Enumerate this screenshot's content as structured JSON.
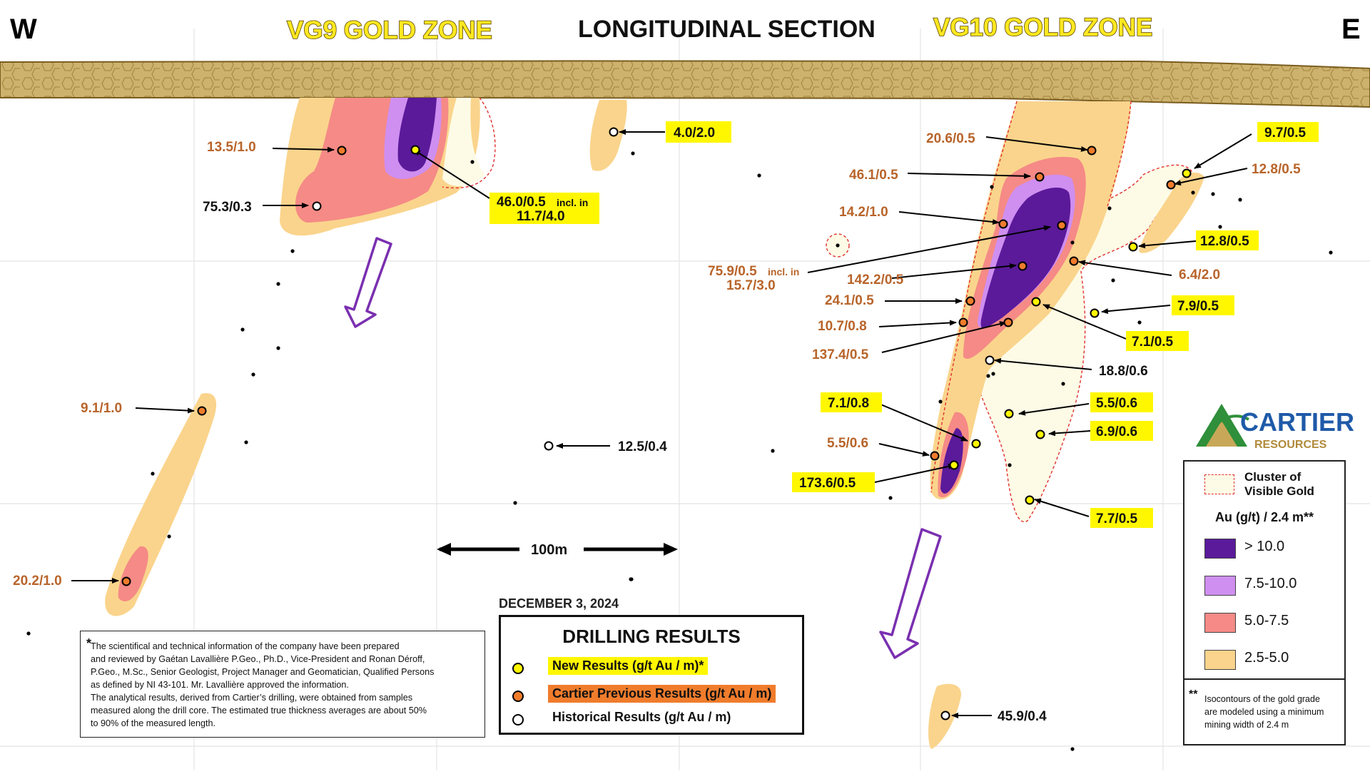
{
  "header": {
    "west": "W",
    "east": "E",
    "vg9_title": "VG9 GOLD ZONE",
    "section_title": "LONGITUDINAL SECTION",
    "vg10_title": "VG10 GOLD ZONE"
  },
  "colors": {
    "grade_gt10": "#5a1a9a",
    "grade_75_10": "#cf8ff0",
    "grade_5_75": "#f58a86",
    "grade_25_5": "#fad48c",
    "visible_gold": "#fdfbe6",
    "new_result": "#fff700",
    "previous_result": "#f07c2c",
    "historical_result": "#ffffff",
    "overburden": "#cdb26e",
    "arrow": "#7a2fb0"
  },
  "labels": {
    "l_13_5": "13.5/1.0",
    "l_75_3": "75.3/0.3",
    "l_46_0": "46.0/0.5",
    "l_46_0_incl": "incl. in",
    "l_11_7": "11.7/4.0",
    "l_4_0": "4.0/2.0",
    "l_9_1": "9.1/1.0",
    "l_20_2": "20.2/1.0",
    "l_12_5": "12.5/0.4",
    "l_20_6": "20.6/0.5",
    "l_46_1": "46.1/0.5",
    "l_14_2": "14.2/1.0",
    "l_75_9": "75.9/0.5",
    "l_75_9_incl": "incl. in",
    "l_15_7": "15.7/3.0",
    "l_142_2": "142.2/0.5",
    "l_24_1": "24.1/0.5",
    "l_10_7": "10.7/0.8",
    "l_137_4": "137.4/0.5",
    "l_7_1_08": "7.1/0.8",
    "l_5_5_06a": "5.5/0.6",
    "l_173_6": "173.6/0.5",
    "l_9_7": "9.7/0.5",
    "l_12_8a": "12.8/0.5",
    "l_12_8b": "12.8/0.5",
    "l_6_4": "6.4/2.0",
    "l_7_9": "7.9/0.5",
    "l_7_1_05": "7.1/0.5",
    "l_18_8": "18.8/0.6",
    "l_5_5_06b": "5.5/0.6",
    "l_6_9": "6.9/0.6",
    "l_7_7": "7.7/0.5",
    "l_45_9": "45.9/0.4"
  },
  "scale_bar": {
    "label": "100m"
  },
  "note": {
    "marker": "*",
    "lines": [
      "The scientifical and technical information of the company have been prepared",
      "and reviewed by Gaétan Lavallière P.Geo., Ph.D., Vice-President and Ronan Déroff,",
      "P.Geo., M.Sc., Senior Geologist, Project Manager and Geomatician, Qualified Persons",
      "as defined by NI 43-101. Mr. Lavallière approved the information.",
      "The analytical results, derived from Cartier’s drilling, were obtained from samples",
      "measured along the drill core. The estimated true thickness averages are about 50%",
      "to 90% of the measured length."
    ]
  },
  "drilling_legend": {
    "date": "DECEMBER 3, 2024",
    "title": "DRILLING RESULTS",
    "new": "New Results (g/t Au / m)*",
    "previous": "Cartier Previous Results (g/t Au / m)",
    "historical": "Historical Results (g/t Au / m)"
  },
  "logo": {
    "name": "CARTIER",
    "sub": "RESOURCES"
  },
  "au_legend": {
    "cluster_line1": "Cluster of",
    "cluster_line2": "Visible Gold",
    "unit": "Au (g/t) / 2.4 m**",
    "classes": [
      "> 10.0",
      "7.5-10.0",
      "5.0-7.5",
      "2.5-5.0"
    ],
    "footnote_marker": "**",
    "footnote_lines": [
      "Isocontours of the gold grade",
      "are modeled using a minimum",
      "mining width of 2.4 m"
    ]
  }
}
